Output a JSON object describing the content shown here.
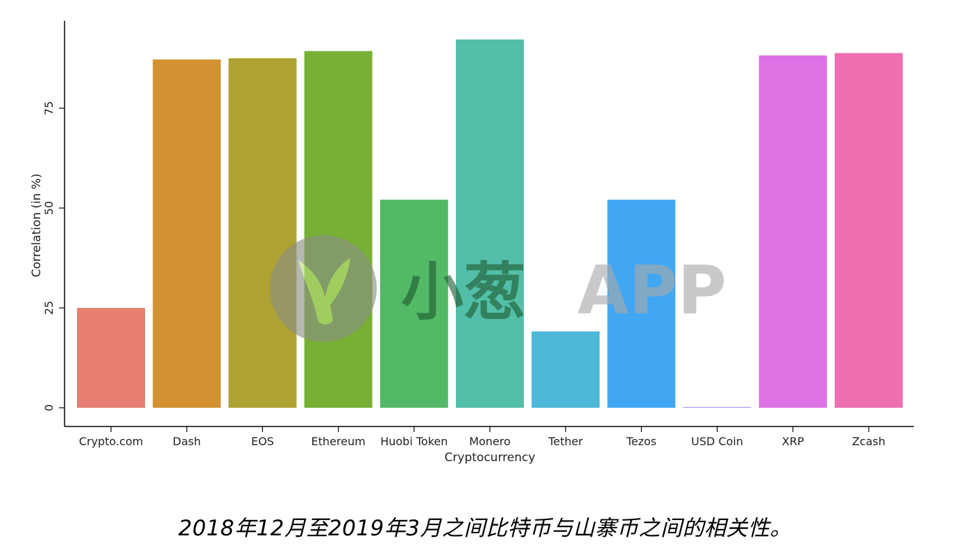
{
  "chart_data": {
    "type": "bar",
    "categories": [
      "Crypto.com",
      "Dash",
      "EOS",
      "Ethereum",
      "Huobi Token",
      "Monero",
      "Tether",
      "Tezos",
      "USD Coin",
      "XRP",
      "Zcash"
    ],
    "values": [
      25,
      87.2,
      87.5,
      89.3,
      52.1,
      92.2,
      19.1,
      52.1,
      0.2,
      88.2,
      88.8
    ],
    "colors": [
      "#E87D72",
      "#D39132",
      "#AEA233",
      "#78B035",
      "#53B966",
      "#53BFA8",
      "#4DB8D8",
      "#42A7F3",
      "#A79BF0",
      "#DD72E5",
      "#EE6FB1"
    ],
    "xlabel": "Cryptocurrency",
    "ylabel": "Correlation (in %)",
    "yticks": [
      0,
      25,
      50,
      75
    ],
    "ylim": [
      0,
      96
    ],
    "grid": false,
    "legend": "none"
  },
  "watermark": {
    "text_cn": "小葱",
    "text_en": "APP"
  },
  "caption": "2018年12月至2019年3月之间比特币与山寨币之间的相关性。"
}
